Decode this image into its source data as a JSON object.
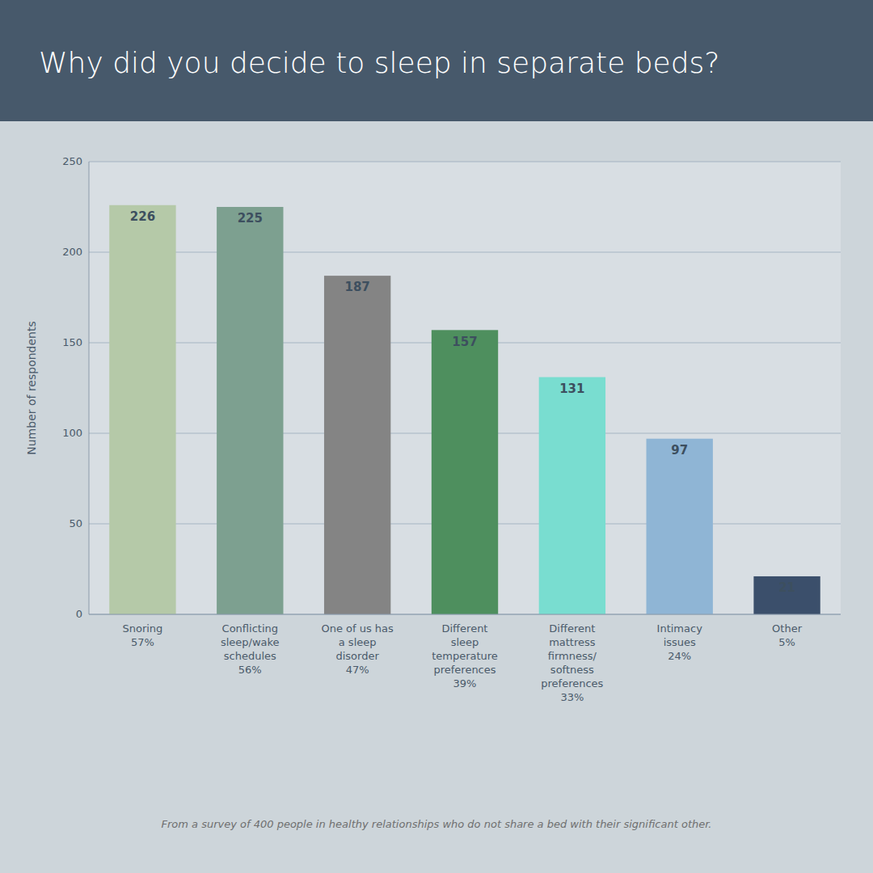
{
  "chart_data": {
    "type": "bar",
    "title": "Why did you decide to sleep in separate beds?",
    "ylabel": "Number of respondents",
    "categories": [
      "Snoring\n57%",
      "Conflicting\nsleep/wake\nschedules\n56%",
      "One of us has\na sleep\ndisorder\n47%",
      "Different\nsleep\ntemperature\npreferences\n39%",
      "Different\nmattress\nfirmness/\nsoftness\npreferences\n33%",
      "Intimacy\nissues\n24%",
      "Other\n5%"
    ],
    "values": [
      226,
      225,
      187,
      157,
      131,
      97,
      21
    ],
    "colors": [
      "#b5c9a8",
      "#7da090",
      "#848484",
      "#4e8f5e",
      "#79ddd0",
      "#8fb5d5",
      "#3b4f6b"
    ],
    "ylim": [
      0,
      250
    ],
    "yticks": [
      0,
      50,
      100,
      150,
      200,
      250
    ],
    "grid": true,
    "data_labels": true,
    "footnote": "From a survey of 400 people in healthy relationships who do not share a bed with their significant other."
  }
}
